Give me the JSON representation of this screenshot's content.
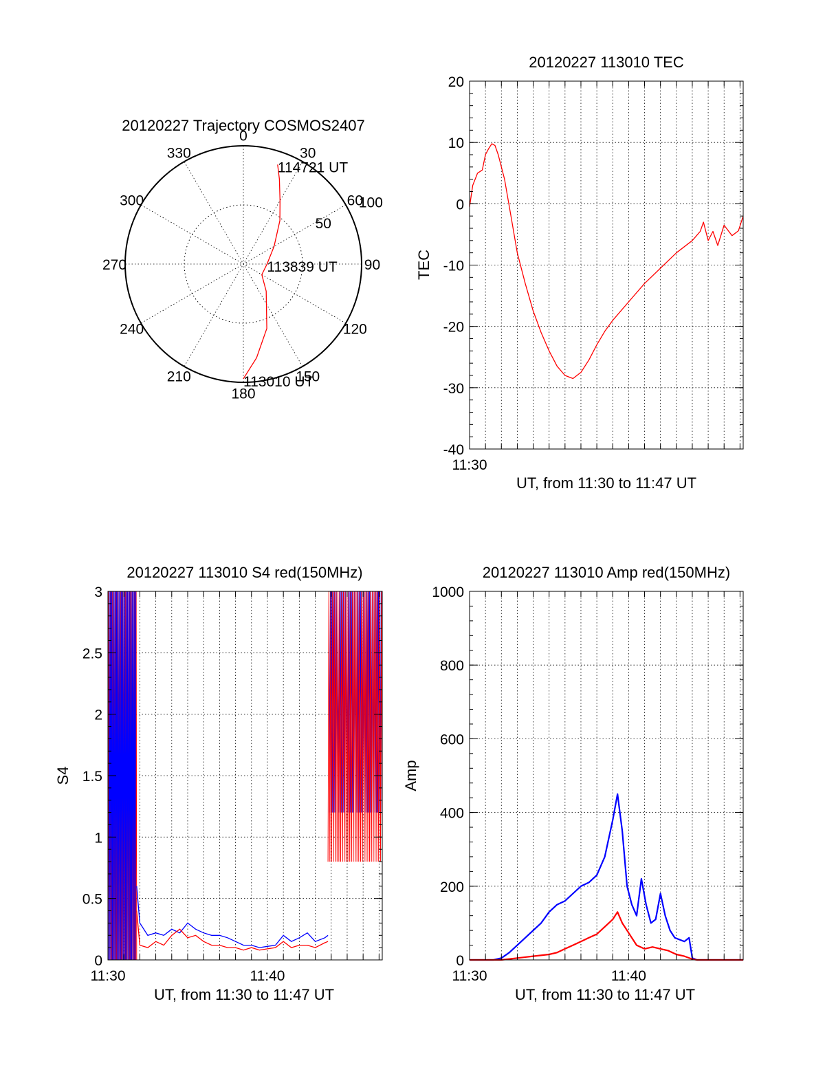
{
  "colors": {
    "red": "#ff0000",
    "blue": "#0000ff",
    "axis": "#000000"
  },
  "chart_data": [
    {
      "id": "polar",
      "type": "line",
      "title": "20120227 Trajectory COSMOS2407",
      "azimuth_labels": [
        "0",
        "30",
        "60",
        "90",
        "120",
        "150",
        "180",
        "210",
        "240",
        "270",
        "300",
        "330"
      ],
      "radial_labels": [
        "50",
        "100"
      ],
      "rmax": 100,
      "series": [
        {
          "color": "#ff0000",
          "points": [
            {
              "az": 180,
              "r": 97
            },
            {
              "az": 172,
              "r": 80
            },
            {
              "az": 160,
              "r": 58
            },
            {
              "az": 140,
              "r": 30
            },
            {
              "az": 120,
              "r": 18
            },
            {
              "az": 90,
              "r": 20
            },
            {
              "az": 60,
              "r": 30
            },
            {
              "az": 40,
              "r": 48
            },
            {
              "az": 30,
              "r": 62
            },
            {
              "az": 23,
              "r": 78
            },
            {
              "az": 19,
              "r": 89
            }
          ]
        }
      ],
      "annotations": [
        {
          "text": "114721 UT",
          "az": 19,
          "r": 89
        },
        {
          "text": "113839 UT",
          "az": 90,
          "r": 20
        },
        {
          "text": "113010 UT",
          "az": 180,
          "r": 97
        }
      ]
    },
    {
      "id": "tec",
      "type": "line",
      "title": "20120227 113010 TEC",
      "xlabel": "UT, from 11:30 to 11:47 UT",
      "ylabel": "TEC",
      "xlim": [
        0,
        17.2
      ],
      "ylim": [
        -40,
        20
      ],
      "yticks": [
        20,
        10,
        0,
        -10,
        -20,
        -30,
        -40
      ],
      "xticks": [
        {
          "value": 0,
          "label": "11:30"
        }
      ],
      "series": [
        {
          "color": "#ff0000",
          "x": [
            0,
            0.2,
            0.5,
            0.8,
            1.0,
            1.2,
            1.4,
            1.6,
            1.8,
            2.2,
            2.6,
            3.0,
            3.5,
            4.0,
            4.5,
            5.0,
            5.5,
            6.0,
            6.5,
            7.0,
            7.5,
            8.0,
            8.5,
            9.0,
            9.5,
            10.0,
            11.0,
            12.0,
            13.0,
            14.0,
            14.5,
            14.7,
            15.0,
            15.3,
            15.6,
            16.0,
            16.5,
            16.9,
            17.2
          ],
          "y": [
            -0.5,
            3,
            5,
            5.5,
            8,
            9,
            9.8,
            9.5,
            8,
            4,
            -2,
            -8,
            -13,
            -17.5,
            -21,
            -24,
            -26.5,
            -28,
            -28.5,
            -27.5,
            -25.5,
            -23,
            -20.8,
            -19,
            -17.5,
            -16,
            -13,
            -10.5,
            -8,
            -6,
            -4.5,
            -3,
            -6,
            -4.5,
            -6.8,
            -3.5,
            -5.2,
            -4.4,
            -2
          ]
        }
      ]
    },
    {
      "id": "s4",
      "type": "line",
      "title": "20120227 113010 S4 red(150MHz)",
      "xlabel": "UT, from 11:30 to 11:47 UT",
      "ylabel": "S4",
      "xlim": [
        0,
        17.2
      ],
      "ylim": [
        0,
        3
      ],
      "yticks": [
        3,
        2.5,
        2,
        1.5,
        1,
        0.5,
        0
      ],
      "ytick_labels": [
        "3",
        "2.5",
        "2",
        "1.5",
        "1",
        "0.5",
        "0"
      ],
      "xticks": [
        {
          "value": 0,
          "label": "11:30"
        },
        {
          "value": 10,
          "label": "11:40"
        }
      ],
      "series": [
        {
          "color": "#0000ff",
          "x": [
            1.8,
            2.0,
            2.5,
            3.0,
            3.5,
            4.0,
            4.5,
            5.0,
            5.5,
            6.0,
            6.5,
            7.0,
            7.5,
            8.0,
            8.5,
            9.0,
            9.5,
            10.0,
            10.5,
            11.0,
            11.5,
            12.0,
            12.5,
            13.0,
            13.6,
            13.8
          ],
          "y": [
            0.6,
            0.3,
            0.2,
            0.22,
            0.2,
            0.25,
            0.22,
            0.3,
            0.25,
            0.22,
            0.2,
            0.2,
            0.18,
            0.15,
            0.12,
            0.12,
            0.1,
            0.11,
            0.12,
            0.2,
            0.15,
            0.18,
            0.22,
            0.15,
            0.18,
            0.2
          ]
        },
        {
          "color": "#ff0000",
          "x": [
            1.8,
            2.0,
            2.5,
            3.0,
            3.5,
            4.0,
            4.5,
            5.0,
            5.5,
            6.0,
            6.5,
            7.0,
            7.5,
            8.0,
            8.5,
            9.0,
            9.5,
            10.0,
            10.5,
            11.0,
            11.5,
            12.0,
            12.5,
            13.0,
            13.6,
            13.8
          ],
          "y": [
            0.4,
            0.12,
            0.1,
            0.15,
            0.12,
            0.2,
            0.25,
            0.18,
            0.2,
            0.15,
            0.12,
            0.12,
            0.1,
            0.1,
            0.08,
            0.1,
            0.08,
            0.09,
            0.1,
            0.15,
            0.1,
            0.12,
            0.12,
            0.1,
            0.14,
            0.15
          ]
        }
      ]
    },
    {
      "id": "amp",
      "type": "line",
      "title": "20120227 113010 Amp red(150MHz)",
      "xlabel": "UT, from 11:30 to 11:47 UT",
      "ylabel": "Amp",
      "xlim": [
        0,
        17.2
      ],
      "ylim": [
        0,
        1000
      ],
      "yticks": [
        1000,
        800,
        600,
        400,
        200,
        0
      ],
      "xticks": [
        {
          "value": 0,
          "label": "11:30"
        },
        {
          "value": 10,
          "label": "11:40"
        }
      ],
      "series": [
        {
          "color": "#0000ff",
          "x": [
            0,
            1.5,
            2.0,
            2.5,
            3.0,
            3.5,
            4.0,
            4.5,
            5.0,
            5.5,
            6.0,
            6.5,
            7.0,
            7.5,
            8.0,
            8.5,
            9.0,
            9.3,
            9.6,
            9.9,
            10.2,
            10.5,
            10.8,
            11.1,
            11.4,
            11.7,
            12.0,
            12.3,
            12.6,
            12.9,
            13.2,
            13.5,
            13.8,
            14.0,
            14.3,
            17.2
          ],
          "y": [
            0,
            0,
            5,
            20,
            40,
            60,
            80,
            100,
            130,
            150,
            160,
            180,
            200,
            210,
            230,
            280,
            380,
            450,
            350,
            200,
            150,
            120,
            220,
            150,
            100,
            110,
            180,
            120,
            80,
            60,
            55,
            50,
            60,
            5,
            0,
            0
          ]
        },
        {
          "color": "#ff0000",
          "x": [
            0,
            2.0,
            3.0,
            4.0,
            5.0,
            5.5,
            6.0,
            6.5,
            7.0,
            7.5,
            8.0,
            8.5,
            9.0,
            9.3,
            9.6,
            9.9,
            10.2,
            10.5,
            11.0,
            11.5,
            12.0,
            12.5,
            13.0,
            13.5,
            14.0,
            14.3,
            17.2
          ],
          "y": [
            0,
            0,
            5,
            10,
            15,
            20,
            30,
            40,
            50,
            60,
            70,
            90,
            110,
            130,
            100,
            80,
            60,
            40,
            30,
            35,
            30,
            25,
            15,
            10,
            2,
            0,
            0
          ]
        }
      ]
    }
  ]
}
